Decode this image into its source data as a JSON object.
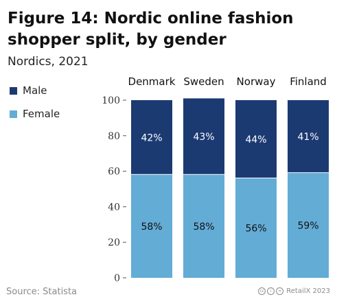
{
  "title": "Figure 14: Nordic online fashion shopper split, by gender",
  "subtitle": "Nordics, 2021",
  "legend": [
    {
      "label": "Male",
      "color": "#1c3a72"
    },
    {
      "label": "Female",
      "color": "#63acd6"
    }
  ],
  "footer": {
    "source": "Source: Statista",
    "credit": "RetailX 2023",
    "license_icon": "creative-commons-icon"
  },
  "chart_data": {
    "type": "bar",
    "stacked": true,
    "categories": [
      "Denmark",
      "Sweden",
      "Norway",
      "Finland"
    ],
    "series": [
      {
        "name": "Female",
        "values": [
          58,
          58,
          56,
          59
        ],
        "labels": [
          "58%",
          "58%",
          "56%",
          "59%"
        ],
        "color": "#63acd6"
      },
      {
        "name": "Male",
        "values": [
          42,
          43,
          44,
          41
        ],
        "labels": [
          "42%",
          "43%",
          "44%",
          "41%"
        ],
        "color": "#1c3a72"
      }
    ],
    "ylim": [
      0,
      100
    ],
    "yticks": [
      0,
      20,
      40,
      60,
      80,
      100
    ],
    "grid": false,
    "category_labels_position": "top",
    "legend_position": "left"
  }
}
